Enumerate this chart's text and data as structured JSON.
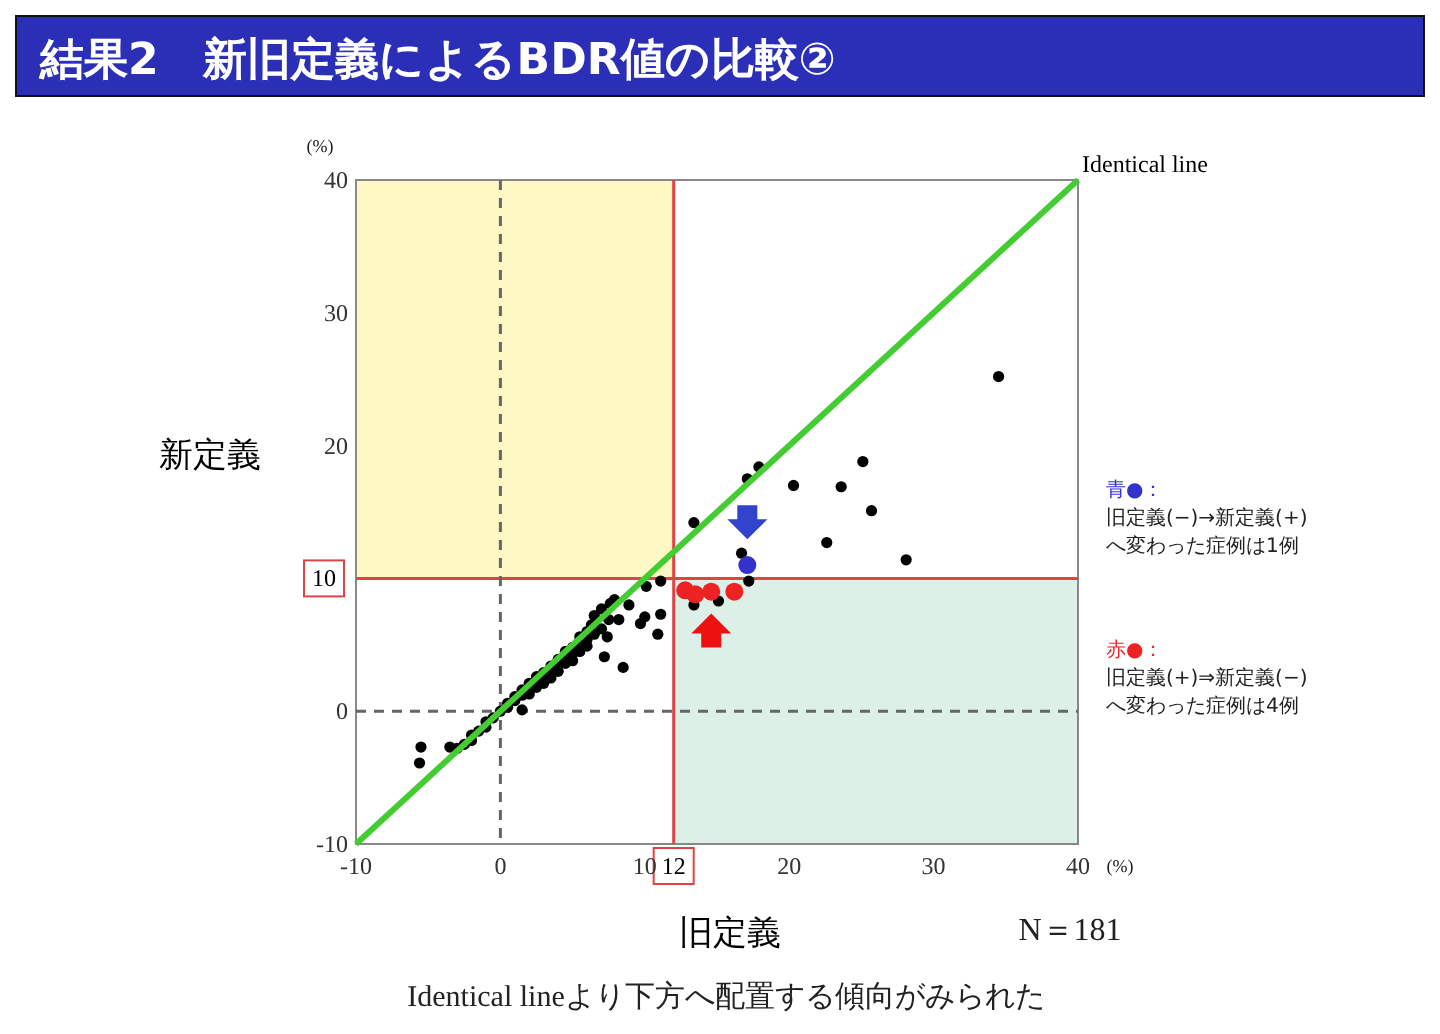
{
  "chart_data": {
    "type": "scatter",
    "title": "結果2　新旧定義によるBDR値の比較②",
    "xlabel": "旧定義",
    "ylabel": "新定義",
    "xlim": [
      -10,
      40
    ],
    "ylim": [
      -10,
      40
    ],
    "xticks": [
      -10,
      0,
      10,
      20,
      30,
      40
    ],
    "yticks": [
      -10,
      0,
      20,
      30,
      40
    ],
    "grid": false,
    "marker": "circle",
    "legend": "right",
    "series": [
      {
        "color": "#000000",
        "x": [
          -5.6,
          -5.5,
          -3.5,
          -3,
          -2.5,
          -2,
          -2,
          -1.5,
          -1,
          -1,
          -0.5,
          0,
          0.5,
          0.5,
          1,
          1,
          1.5,
          1.5,
          1.5,
          2,
          2,
          2.5,
          2.5,
          3,
          3,
          3.5,
          3.5,
          3.5,
          4,
          4,
          4,
          4.5,
          4.5,
          4.5,
          5,
          5,
          5,
          5.5,
          5.5,
          5.5,
          6,
          6,
          6,
          6.3,
          6.5,
          6.5,
          7,
          7,
          7.2,
          7.4,
          7.5,
          7.6,
          7.9,
          8.2,
          8.5,
          8.9,
          9.7,
          10,
          10.1,
          10.9,
          11.1,
          11.1,
          13.4,
          15.1,
          13.4,
          16.7,
          17.2,
          17.1,
          17.9,
          20.3,
          23.6,
          25.1,
          25.7,
          22.6,
          28.1,
          34.5
        ],
        "values": [
          -3.9,
          -2.7,
          -2.7,
          -2.8,
          -2.5,
          -2.2,
          -1.8,
          -1.5,
          -1.2,
          -0.8,
          -0.5,
          0,
          0.3,
          0.6,
          0.8,
          1.1,
          1.2,
          1.6,
          0.1,
          2.1,
          1.3,
          2.6,
          1.8,
          2.9,
          2.1,
          3,
          3.4,
          2.5,
          3.5,
          3.9,
          3,
          4,
          3.6,
          4.5,
          4.3,
          4.8,
          3.8,
          5,
          5.6,
          4.5,
          5.4,
          6,
          4.9,
          6.5,
          5.8,
          7.2,
          6.2,
          7.7,
          4.1,
          5.6,
          6.9,
          8.1,
          8.4,
          6.9,
          3.3,
          8,
          6.6,
          7.1,
          9.4,
          5.8,
          7.3,
          9.8,
          8,
          8.3,
          14.2,
          11.9,
          9.8,
          17.5,
          18.4,
          17,
          16.9,
          18.8,
          15.1,
          12.7,
          11.4,
          25.2
        ]
      },
      {
        "name": "青●：",
        "color": "#3333cc",
        "x": [
          17.1
        ],
        "values": [
          11
        ]
      },
      {
        "name": "赤●：",
        "color": "#ee2222",
        "x": [
          12.8,
          13.5,
          14.6,
          16.2
        ],
        "values": [
          9.1,
          8.8,
          9,
          9
        ]
      },
      {
        "name": "Identical line",
        "type": "line",
        "marker": "none",
        "color": "#44cc33",
        "x": [
          -10,
          40
        ],
        "values": [
          -10,
          40
        ]
      }
    ],
    "ref_lines": [
      {
        "axis": "x",
        "value": 12,
        "label": "12",
        "color": "#dd4444"
      },
      {
        "axis": "y",
        "value": 10,
        "label": "10",
        "color": "#dd4444"
      },
      {
        "axis": "x",
        "value": 0,
        "color": "#666666",
        "line_style": "dashed"
      },
      {
        "axis": "y",
        "value": 0,
        "color": "#666666",
        "line_style": "dashed"
      }
    ],
    "annotations": [
      "(%)",
      "(%)",
      "N＝181",
      "Identical lineより下方へ配置する傾向がみられた",
      "旧定義(−)→新定義(+)へ変わった症例は1例",
      "旧定義(+)⇒新定義(−)へ変わった症例は4例"
    ]
  }
}
